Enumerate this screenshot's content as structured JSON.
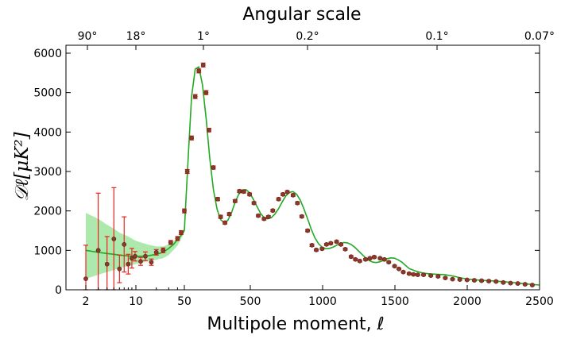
{
  "chart_data": {
    "type": "scatter",
    "title": "Angular scale",
    "xlabel": "Multipole moment, ℓ",
    "ylabel": "𝒟ℓ[μK²]",
    "ylim": [
      0,
      6200
    ],
    "x_scale": "log below ℓ = 50, linear from 50 to 2500",
    "x_ticks": [
      "2",
      "10",
      "50",
      "500",
      "1000",
      "1500",
      "2000",
      "2500"
    ],
    "y_ticks": [
      "0",
      "1000",
      "2000",
      "3000",
      "4000",
      "5000",
      "6000"
    ],
    "top_ticks": [
      "90°",
      "18°",
      "1°",
      "0.2°",
      "0.1°",
      "0.07°"
    ],
    "colors": {
      "model": "#22aa22",
      "band": "#9fe59f",
      "points": "#8b3a2a",
      "errorbars": "#e8241c"
    },
    "series": [
      {
        "name": "",
        "kind": "errorbar",
        "x": [
          2,
          3,
          4,
          5,
          6,
          7,
          8,
          9,
          10,
          12,
          14,
          17,
          20,
          25,
          32,
          40,
          45,
          50,
          70,
          100,
          125,
          150,
          180,
          200,
          220,
          250,
          280,
          300,
          330,
          360,
          400,
          430,
          460,
          500,
          530,
          560,
          600,
          630,
          660,
          700,
          730,
          760,
          800,
          830,
          860,
          900,
          930,
          960,
          1000,
          1030,
          1060,
          1100,
          1130,
          1160,
          1200,
          1230,
          1260,
          1300,
          1330,
          1360,
          1400,
          1430,
          1460,
          1500,
          1530,
          1560,
          1600,
          1630,
          1660,
          1700,
          1750,
          1800,
          1850,
          1900,
          1950,
          2000,
          2050,
          2100,
          2150,
          2200,
          2250,
          2300,
          2350,
          2400,
          2450
        ],
        "y": [
          280,
          1000,
          650,
          1290,
          530,
          1150,
          650,
          800,
          850,
          720,
          850,
          700,
          950,
          1000,
          1200,
          1300,
          1450,
          2000,
          3000,
          3850,
          4900,
          5550,
          5700,
          5000,
          4050,
          3100,
          2300,
          1850,
          1700,
          1920,
          2250,
          2500,
          2490,
          2420,
          2200,
          1880,
          1800,
          1850,
          2010,
          2300,
          2420,
          2480,
          2400,
          2200,
          1860,
          1500,
          1130,
          1010,
          1040,
          1150,
          1180,
          1220,
          1150,
          1030,
          840,
          770,
          730,
          770,
          800,
          830,
          800,
          770,
          700,
          600,
          530,
          450,
          410,
          390,
          380,
          380,
          360,
          340,
          300,
          270,
          260,
          250,
          240,
          230,
          220,
          210,
          185,
          170,
          160,
          140,
          120
        ],
        "err": [
          850,
          1450,
          700,
          1300,
          350,
          700,
          250,
          250,
          120,
          100,
          110,
          80,
          70,
          60,
          50,
          50,
          50,
          50,
          50,
          50,
          50,
          50,
          50,
          50,
          45,
          40,
          40,
          40,
          35,
          35,
          35,
          35,
          35,
          35,
          30,
          30,
          30,
          30,
          30,
          30,
          30,
          30,
          30,
          30,
          30,
          30,
          30,
          25,
          25,
          25,
          25,
          25,
          25,
          25,
          25,
          25,
          25,
          25,
          25,
          25,
          20,
          20,
          20,
          20,
          20,
          20,
          20,
          20,
          20,
          20,
          20,
          20,
          20,
          20,
          20,
          20,
          20,
          20,
          20,
          20,
          20,
          20,
          20,
          20,
          20
        ]
      },
      {
        "name": "",
        "kind": "line",
        "x": [
          2,
          3,
          4,
          5,
          6,
          8,
          10,
          12,
          15,
          20,
          25,
          30,
          35,
          40,
          45,
          50,
          60,
          80,
          100,
          125,
          150,
          175,
          200,
          225,
          250,
          275,
          300,
          325,
          350,
          375,
          400,
          425,
          450,
          475,
          500,
          525,
          550,
          575,
          600,
          625,
          650,
          675,
          700,
          725,
          750,
          775,
          800,
          825,
          850,
          875,
          900,
          925,
          950,
          975,
          1000,
          1025,
          1050,
          1075,
          1100,
          1125,
          1150,
          1175,
          1200,
          1225,
          1250,
          1275,
          1300,
          1325,
          1350,
          1375,
          1400,
          1425,
          1450,
          1475,
          1500,
          1525,
          1550,
          1575,
          1600,
          1650,
          1700,
          1750,
          1800,
          1850,
          1900,
          1950,
          2000,
          2100,
          2200,
          2300,
          2400,
          2500
        ],
        "y": [
          1000,
          950,
          920,
          900,
          880,
          860,
          850,
          850,
          860,
          900,
          950,
          1050,
          1150,
          1270,
          1380,
          1500,
          2200,
          3600,
          4900,
          5600,
          5650,
          5200,
          4350,
          3350,
          2550,
          2050,
          1780,
          1700,
          1760,
          1950,
          2220,
          2420,
          2530,
          2540,
          2460,
          2300,
          2120,
          1940,
          1830,
          1800,
          1830,
          1920,
          2060,
          2230,
          2380,
          2470,
          2490,
          2420,
          2270,
          2050,
          1800,
          1540,
          1320,
          1170,
          1080,
          1040,
          1050,
          1080,
          1130,
          1170,
          1200,
          1190,
          1150,
          1080,
          990,
          900,
          810,
          740,
          700,
          690,
          710,
          750,
          790,
          810,
          800,
          760,
          700,
          620,
          540,
          470,
          420,
          400,
          390,
          380,
          350,
          310,
          270,
          240,
          220,
          190,
          150,
          120
        ]
      },
      {
        "name": "",
        "kind": "band",
        "x": [
          2,
          3,
          4,
          5,
          6,
          8,
          10,
          12,
          15,
          20,
          25,
          30,
          40,
          50
        ],
        "upper": [
          1950,
          1800,
          1650,
          1550,
          1450,
          1350,
          1250,
          1200,
          1150,
          1100,
          1100,
          1150,
          1300,
          1550
        ],
        "lower": [
          280,
          380,
          450,
          500,
          550,
          600,
          650,
          680,
          720,
          760,
          800,
          880,
          1120,
          1450
        ]
      }
    ]
  }
}
